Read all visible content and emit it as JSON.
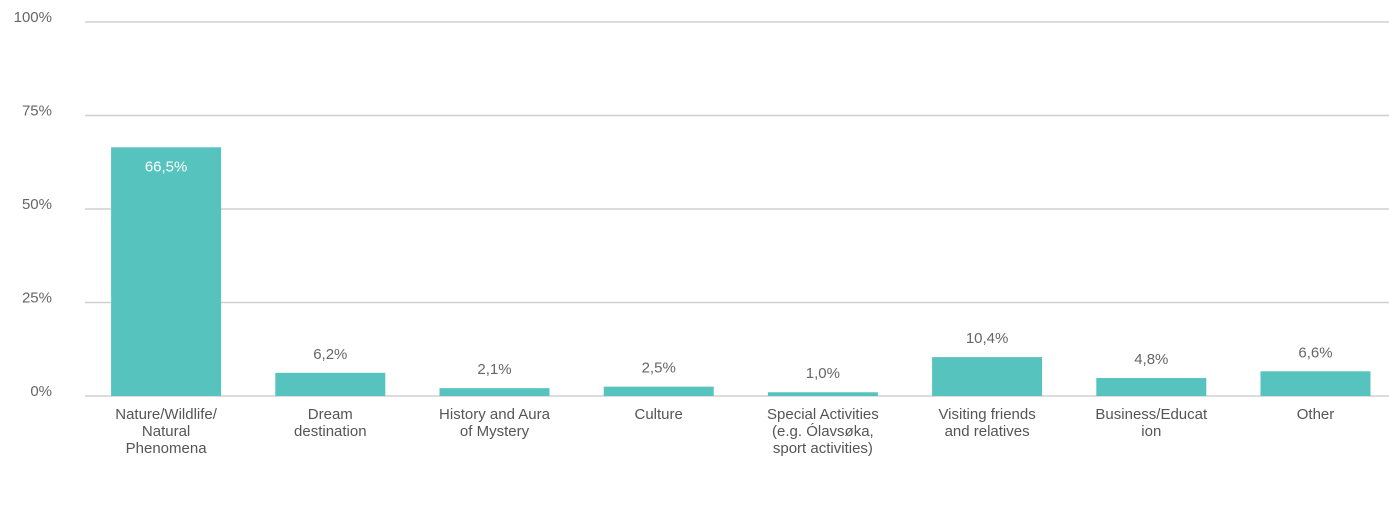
{
  "chart_data": {
    "type": "bar",
    "categories": [
      "Nature/Wildlife/Natural Phenomena",
      "Dream destination",
      "History and Aura of Mystery",
      "Culture",
      "Special Activities (e.g. Ólavsøka, sport activities)",
      "Visiting friends and relatives",
      "Business/Education",
      "Other"
    ],
    "values": [
      66.5,
      6.2,
      2.1,
      2.5,
      1.0,
      10.4,
      4.8,
      6.6
    ],
    "value_labels": [
      "66,5%",
      "6,2%",
      "2,1%",
      "2,5%",
      "1,0%",
      "10,4%",
      "4,8%",
      "6,6%"
    ],
    "color": "#57c3be",
    "ylim": [
      0,
      100
    ],
    "yticks": [
      {
        "value": 0,
        "label": "0%"
      },
      {
        "value": 25,
        "label": "25%"
      },
      {
        "value": 50,
        "label": "50%"
      },
      {
        "value": 75,
        "label": "75%"
      },
      {
        "value": 100,
        "label": "100%"
      }
    ],
    "grid": true
  }
}
